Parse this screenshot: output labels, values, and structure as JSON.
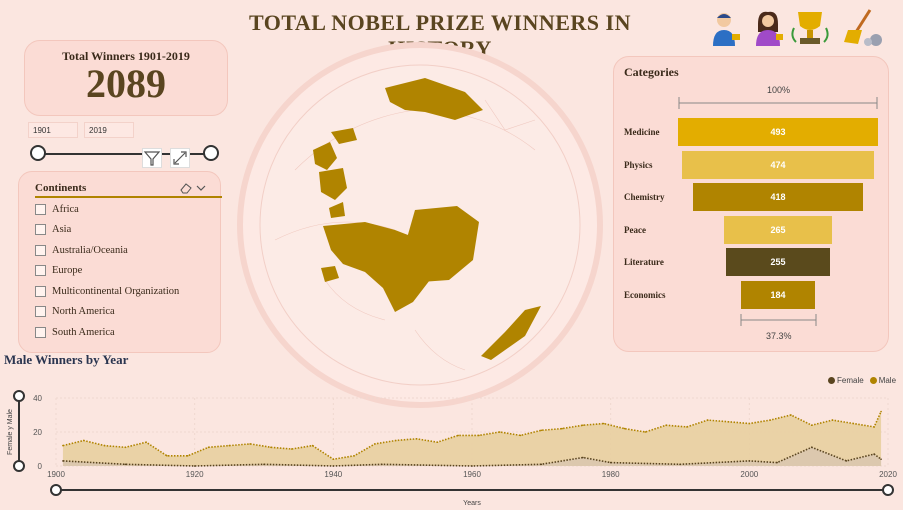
{
  "header": {
    "title": "TOTAL NOBEL PRIZE WINNERS IN HISTORY"
  },
  "header_icons": [
    "male-winner-icon",
    "female-winner-icon",
    "trophy-icon",
    "cleaning-icon"
  ],
  "total_card": {
    "label": "Total Winners 1901-2019",
    "value": "2089"
  },
  "date_range": {
    "start": "1901",
    "end": "2019"
  },
  "continents": {
    "title": "Continents",
    "items": [
      "Africa",
      "Asia",
      "Australia/Oceania",
      "Europe",
      "Multicontinental Organization",
      "North America",
      "South America"
    ]
  },
  "colors": {
    "gold_dark": "#b08400",
    "gold": "#e3ad00",
    "gold_light": "#e8c04a",
    "brown": "#5a4520",
    "background": "#fbe6e0",
    "card": "#fbdcd5"
  },
  "categories": {
    "title": "Categories",
    "top_percent": "100%",
    "bottom_percent": "37.3%",
    "items": [
      {
        "label": "Medicine",
        "value": "493",
        "color": "#e3ad00"
      },
      {
        "label": "Physics",
        "value": "474",
        "color": "#e8c04a"
      },
      {
        "label": "Chemistry",
        "value": "418",
        "color": "#b08400"
      },
      {
        "label": "Peace",
        "value": "265",
        "color": "#e8c04a"
      },
      {
        "label": "Literature",
        "value": "255",
        "color": "#5a4a1c"
      },
      {
        "label": "Economics",
        "value": "184",
        "color": "#b08400"
      }
    ]
  },
  "line_chart_title": "Male Winners by Year",
  "chart_data": {
    "type": "area",
    "title": "Male Winners by Year",
    "xlabel": "Years",
    "ylabel": "Female y Male",
    "xlim": [
      1900,
      2020
    ],
    "ylim": [
      0,
      40
    ],
    "x_ticks": [
      "1900",
      "1920",
      "1940",
      "1960",
      "1980",
      "2000",
      "2020"
    ],
    "y_ticks": [
      "0",
      "20",
      "40"
    ],
    "legend": {
      "position": "top-right",
      "entries": [
        "Female",
        "Male"
      ]
    },
    "series": [
      {
        "name": "Male",
        "color": "#b08400",
        "x": [
          1901,
          1904,
          1907,
          1910,
          1913,
          1916,
          1919,
          1922,
          1925,
          1928,
          1931,
          1934,
          1937,
          1940,
          1943,
          1946,
          1949,
          1952,
          1955,
          1958,
          1961,
          1964,
          1967,
          1970,
          1973,
          1976,
          1979,
          1982,
          1985,
          1988,
          1991,
          1994,
          1997,
          2000,
          2003,
          2006,
          2009,
          2012,
          2015,
          2018,
          2019
        ],
        "values": [
          12,
          15,
          12,
          11,
          14,
          6,
          6,
          11,
          12,
          13,
          11,
          10,
          12,
          4,
          6,
          13,
          15,
          16,
          14,
          18,
          18,
          20,
          18,
          21,
          22,
          24,
          25,
          22,
          20,
          24,
          23,
          27,
          26,
          25,
          27,
          30,
          24,
          27,
          25,
          23,
          32
        ]
      },
      {
        "name": "Female",
        "color": "#5a4520",
        "x": [
          1901,
          1910,
          1920,
          1930,
          1940,
          1947,
          1960,
          1970,
          1976,
          1980,
          1990,
          2000,
          2004,
          2009,
          2014,
          2018,
          2019
        ],
        "values": [
          3,
          1,
          0,
          1,
          0,
          1,
          0,
          1,
          5,
          2,
          1,
          3,
          2,
          11,
          3,
          7,
          4
        ]
      }
    ]
  }
}
